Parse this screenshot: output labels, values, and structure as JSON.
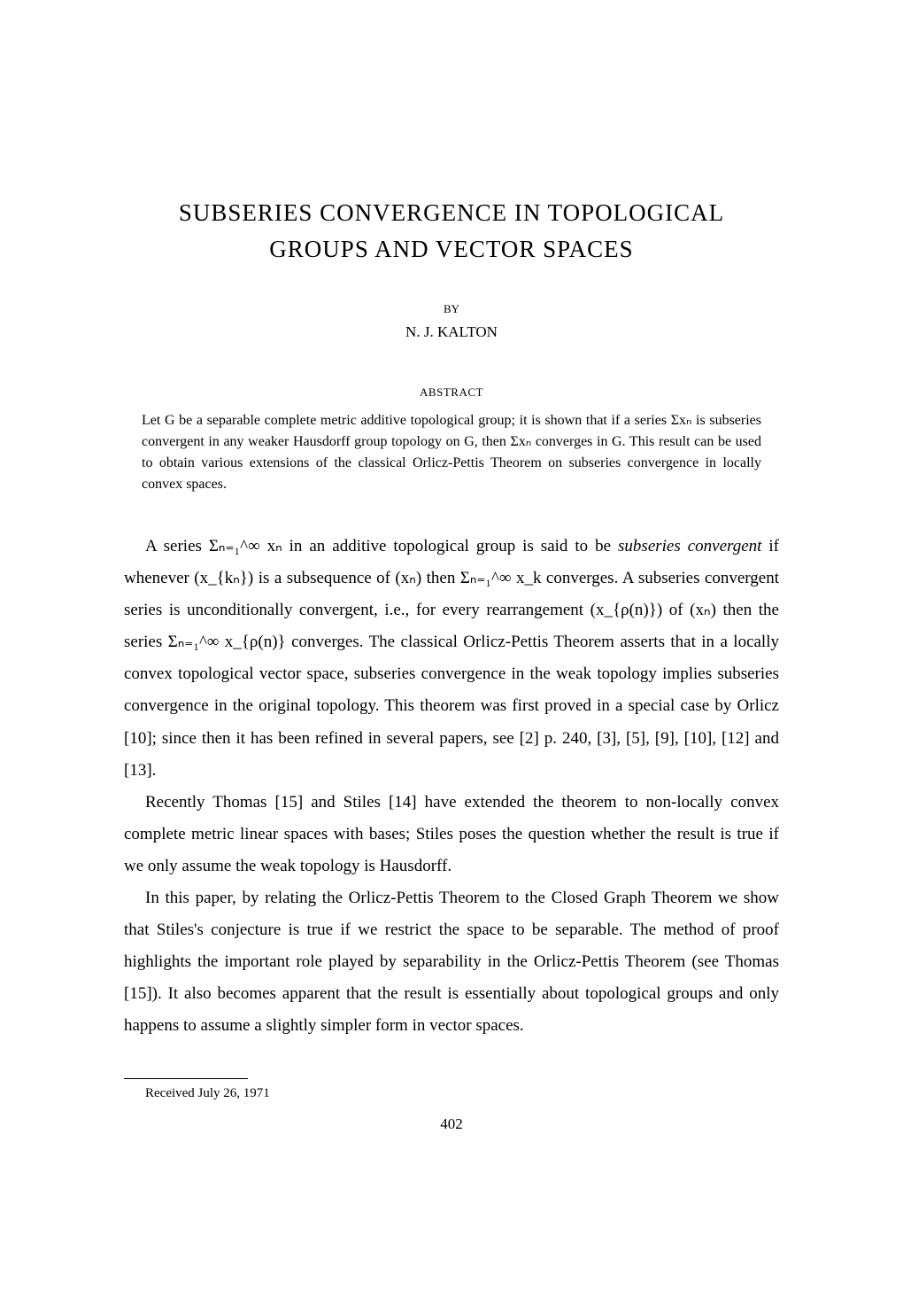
{
  "title_line1": "SUBSERIES CONVERGENCE IN TOPOLOGICAL",
  "title_line2": "GROUPS AND VECTOR SPACES",
  "by": "BY",
  "author": "N. J. KALTON",
  "abstract_heading": "ABSTRACT",
  "abstract_body": "Let G be a separable complete metric additive topological group; it is shown that if a series Σxₙ is subseries convergent in any weaker Hausdorff group topology on G, then Σxₙ converges in G. This result can be used to obtain various extensions of the classical Orlicz-Pettis Theorem on subseries convergence in locally convex spaces.",
  "para1_a": "A series Σₙ₌₁^∞ xₙ in an additive topological group is said to be ",
  "para1_b": "subseries convergent",
  "para1_c": " if whenever (x_{kₙ}) is a subsequence of (xₙ) then Σₙ₌₁^∞ x_k converges. A subseries convergent series is unconditionally convergent, i.e., for every rearrangement (x_{ρ(n)}) of (xₙ) then the series Σₙ₌₁^∞ x_{ρ(n)} converges. The classical Orlicz-Pettis Theorem asserts that in a locally convex topological vector space, subseries convergence in the weak topology implies subseries convergence in the original topology. This theorem was first proved in a special case by Orlicz [10]; since then it has been refined in several papers, see [2] p. 240, [3], [5], [9], [10], [12] and [13].",
  "para2": "Recently Thomas [15] and Stiles [14] have extended the theorem to non-locally convex complete metric linear spaces with bases; Stiles poses the question whether the result is true if we only assume the weak topology is Hausdorff.",
  "para3": "In this paper, by relating the Orlicz-Pettis Theorem to the Closed Graph Theorem we show that Stiles's conjecture is true if we restrict the space to be separable. The method of proof highlights the important role played by separability in the Orlicz-Pettis Theorem (see Thomas [15]). It also becomes apparent that the result is essentially about topological groups and only happens to assume a slightly simpler form in vector spaces.",
  "footnote": "Received July 26, 1971",
  "page_number": "402"
}
